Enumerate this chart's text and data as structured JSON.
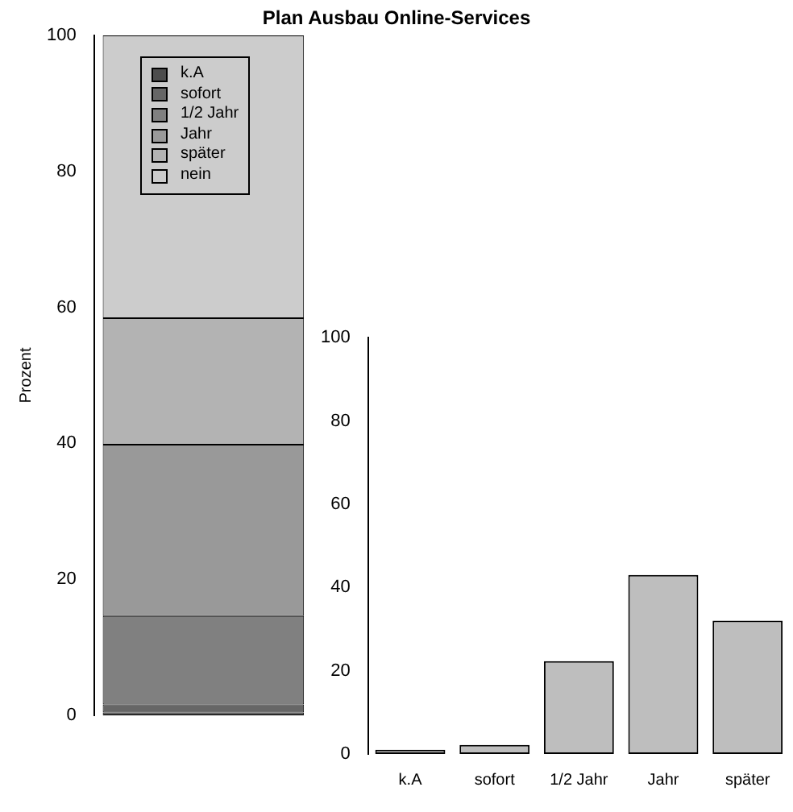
{
  "chart_data": [
    {
      "type": "bar",
      "title": "Plan Ausbau Online-Services",
      "ylabel": "Prozent",
      "stacked": true,
      "categories": [
        null
      ],
      "legend": "top left",
      "ylim": [
        0,
        100
      ],
      "yticks": [
        0,
        20,
        40,
        60,
        80,
        100
      ],
      "grid": false,
      "series": [
        {
          "name": "k.A",
          "color": "#4d4d4d",
          "values": [
            0.4
          ]
        },
        {
          "name": "sofort",
          "color": "#666666",
          "values": [
            1.2
          ]
        },
        {
          "name": "1/2 Jahr",
          "color": "#808080",
          "values": [
            13.0
          ]
        },
        {
          "name": "Jahr",
          "color": "#999999",
          "values": [
            25.2
          ]
        },
        {
          "name": "später",
          "color": "#b3b3b3",
          "values": [
            18.6
          ]
        },
        {
          "name": "nein",
          "color": "#cccccc",
          "values": [
            41.6
          ]
        }
      ]
    },
    {
      "type": "bar",
      "categories": [
        "k.A",
        "sofort",
        "1/2 Jahr",
        "Jahr",
        "später"
      ],
      "values": [
        1,
        2.2,
        22.3,
        43,
        32
      ],
      "color": "#bebebe",
      "ylim": [
        0,
        100
      ],
      "yticks": [
        0,
        20,
        40,
        60,
        80,
        100
      ],
      "grid": false
    }
  ]
}
